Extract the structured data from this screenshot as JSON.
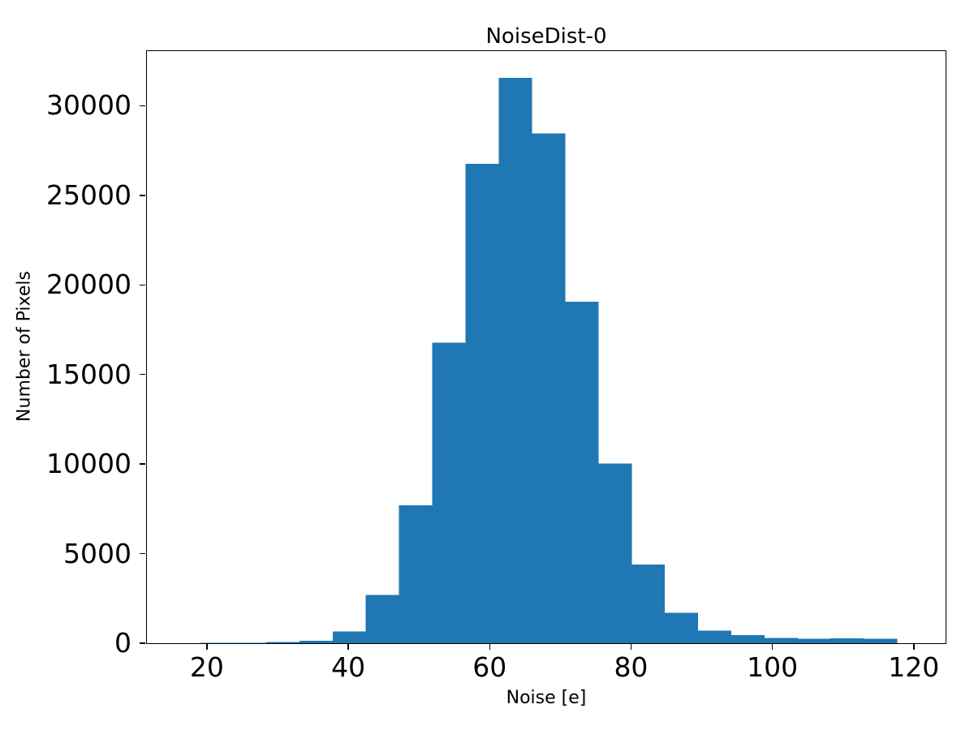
{
  "figure": {
    "background": "#ffffff"
  },
  "chart_data": {
    "type": "bar",
    "subtype": "histogram",
    "title": "NoiseDist-0",
    "xlabel": "Noise [e]",
    "ylabel": "Number of Pixels",
    "bar_color": "#1f77b4",
    "grid": false,
    "legend": "none",
    "xlim": [
      11.4,
      124.5
    ],
    "ylim": [
      0,
      33100
    ],
    "xticks": [
      20,
      40,
      60,
      80,
      100,
      120
    ],
    "yticks": [
      0,
      5000,
      10000,
      15000,
      20000,
      25000,
      30000
    ],
    "bin_edges": [
      14.2,
      18.9,
      23.6,
      28.3,
      33.0,
      37.7,
      42.4,
      47.1,
      51.8,
      56.5,
      61.2,
      65.9,
      70.6,
      75.3,
      80.0,
      84.7,
      89.4,
      94.1,
      98.8,
      103.5,
      108.2,
      112.9,
      117.6
    ],
    "counts": [
      0,
      20,
      30,
      60,
      130,
      650,
      2700,
      7700,
      16800,
      26800,
      31600,
      28500,
      19100,
      10050,
      4400,
      1700,
      700,
      450,
      300,
      250,
      280,
      250
    ]
  }
}
